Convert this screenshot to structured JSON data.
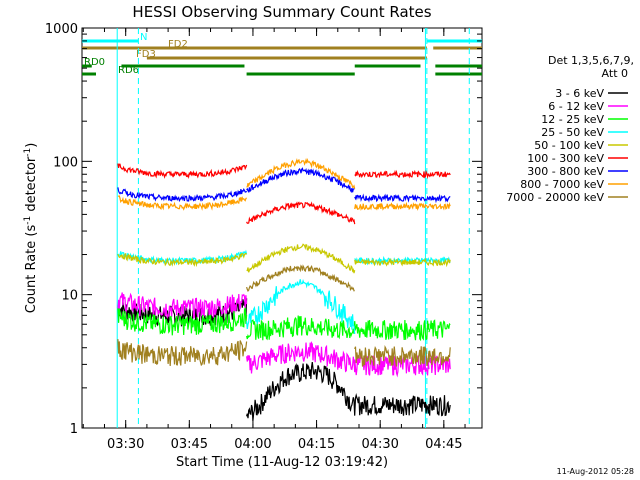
{
  "chart_data": {
    "type": "line",
    "title": "HESSI Observing Summary Count Rates",
    "xlabel": "Start Time (11-Aug-12 03:19:42)",
    "ylabel_main": "Count Rate (s",
    "ylabel_sup1": "-1",
    "ylabel_mid": " detector",
    "ylabel_sup2": "-1",
    "ylabel_end": ")",
    "y_scale": "log",
    "ylim": [
      1,
      1000
    ],
    "xlim_minutes": [
      "03:19:42",
      "04:54:00"
    ],
    "x_ticks": [
      "03:30",
      "03:45",
      "04:00",
      "04:15",
      "04:30",
      "04:45"
    ],
    "y_ticks": [
      "1",
      "10",
      "100",
      "1000"
    ],
    "legend_header": [
      "Det 1,3,5,6,7,9,",
      "Att 0"
    ],
    "legend_position": "right",
    "timestamp": "11-Aug-2012 05:28",
    "flags": [
      {
        "label": "N",
        "color": "#00ffff",
        "segments": [
          [
            "03:19:42",
            "03:33:00"
          ],
          [
            "04:41:00",
            "04:54:00"
          ]
        ]
      },
      {
        "label": "FD2",
        "color": "#a08020",
        "segments": [
          [
            "03:19:42",
            "04:41:00"
          ],
          [
            "04:42:30",
            "04:54:00"
          ]
        ]
      },
      {
        "label": "FD3",
        "color": "#a08020",
        "segments": [
          [
            "03:35:00",
            "04:41:00"
          ]
        ]
      },
      {
        "label": "RD0",
        "color": "#008000",
        "segments": [
          [
            "03:19:42",
            "03:22:00"
          ],
          [
            "03:29:00",
            "03:58:00"
          ],
          [
            "04:24:00",
            "04:39:30"
          ],
          [
            "04:43:00",
            "04:54:00"
          ]
        ]
      },
      {
        "label": "RD6",
        "color": "#008000",
        "segments": [
          [
            "03:19:42",
            "03:23:00"
          ],
          [
            "03:58:30",
            "04:24:00"
          ],
          [
            "04:43:00",
            "04:54:00"
          ]
        ]
      }
    ],
    "series": [
      {
        "name": "3 - 6 keV",
        "color": "#000000",
        "day": [
          1.2,
          1.5,
          2.0,
          2.5,
          2.6,
          2.7,
          2.5,
          2.0,
          1.4
        ],
        "pre": 7,
        "post": 1.5
      },
      {
        "name": "6 - 12 keV",
        "color": "#ff00ff",
        "day": [
          3.0,
          3.2,
          3.5,
          3.7,
          3.8,
          3.7,
          3.5,
          3.2,
          3.0
        ],
        "pre": 8,
        "post": 3.0
      },
      {
        "name": "12 - 25 keV",
        "color": "#00ff00",
        "day": [
          5.5,
          5.5,
          5.6,
          5.8,
          6.0,
          5.8,
          5.6,
          5.5,
          5.4
        ],
        "pre": 6,
        "post": 5.5
      },
      {
        "name": "25 - 50 keV",
        "color": "#00ffff",
        "day": [
          6,
          7.5,
          9.5,
          11.5,
          12.5,
          11.5,
          9.5,
          7.5,
          6
        ],
        "pre": 18,
        "post": 18
      },
      {
        "name": "50 - 100 keV",
        "color": "#c8c800",
        "day": [
          15,
          17.5,
          20,
          22,
          23,
          22,
          20,
          17.5,
          15
        ],
        "pre": 17.5,
        "post": 17.5
      },
      {
        "name": "100 - 300 keV",
        "color": "#ff0000",
        "day": [
          35,
          39,
          43,
          46,
          47,
          46,
          43,
          39,
          35
        ],
        "pre": 80,
        "post": 80
      },
      {
        "name": "300 - 800 keV",
        "color": "#0000ff",
        "day": [
          60,
          68,
          76,
          82,
          85,
          82,
          76,
          68,
          60
        ],
        "pre": 53,
        "post": 53
      },
      {
        "name": "800 - 7000 keV",
        "color": "#ffa000",
        "day": [
          65,
          75,
          86,
          95,
          100,
          95,
          86,
          75,
          65
        ],
        "pre": 46,
        "post": 46
      },
      {
        "name": "7000 - 20000 keV",
        "color": "#a08020",
        "day": [
          11,
          12.5,
          14,
          15.5,
          16,
          15.5,
          14,
          12.5,
          11
        ],
        "pre": 3.5,
        "post": 3.5
      }
    ]
  }
}
